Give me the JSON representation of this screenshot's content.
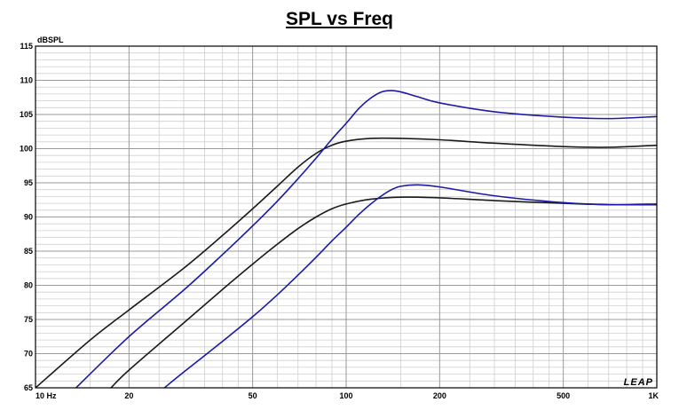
{
  "chart_data": {
    "type": "line",
    "title": "SPL vs Freq",
    "ylabel": "dBSPL",
    "xlabel": "",
    "xscale": "log",
    "xlim": [
      10,
      1000
    ],
    "ylim": [
      65,
      115
    ],
    "grid": true,
    "legend": "none",
    "x_ticks": [
      {
        "value": 10,
        "label": "10 Hz"
      },
      {
        "value": 20,
        "label": "20"
      },
      {
        "value": 50,
        "label": "50"
      },
      {
        "value": 100,
        "label": "100"
      },
      {
        "value": 200,
        "label": "200"
      },
      {
        "value": 500,
        "label": "500"
      },
      {
        "value": 1000,
        "label": "1K"
      }
    ],
    "y_ticks": [
      65,
      70,
      75,
      80,
      85,
      90,
      95,
      100,
      105,
      110,
      115
    ],
    "series": [
      {
        "color": "#1a1a1a",
        "x": [
          10,
          15,
          20,
          30,
          40,
          50,
          60,
          70,
          80,
          90,
          100,
          120,
          150,
          200,
          300,
          500,
          700,
          1000
        ],
        "y": [
          65,
          72,
          76.4,
          82.5,
          87.3,
          91.2,
          94.5,
          97.3,
          99.3,
          100.5,
          101.1,
          101.5,
          101.5,
          101.3,
          100.8,
          100.3,
          100.2,
          100.5
        ]
      },
      {
        "color": "#1a1aa6",
        "x": [
          13.5,
          20,
          30,
          40,
          50,
          60,
          70,
          80,
          90,
          100,
          110,
          120,
          130,
          140,
          150,
          170,
          200,
          300,
          500,
          700,
          1000
        ],
        "y": [
          65,
          72.5,
          79.3,
          84.5,
          88.7,
          92.3,
          95.6,
          98.6,
          101.4,
          103.7,
          105.9,
          107.4,
          108.3,
          108.5,
          108.3,
          107.6,
          106.7,
          105.4,
          104.6,
          104.4,
          104.7
        ]
      },
      {
        "color": "#1a1a1a",
        "x": [
          17.5,
          20,
          30,
          40,
          50,
          60,
          70,
          80,
          90,
          100,
          120,
          150,
          200,
          300,
          500,
          700,
          1000
        ],
        "y": [
          65,
          67.6,
          74.5,
          79.4,
          83.1,
          86,
          88.3,
          90,
          91.2,
          91.9,
          92.6,
          92.9,
          92.8,
          92.4,
          92,
          91.8,
          91.8
        ]
      },
      {
        "color": "#1a1aa6",
        "x": [
          26,
          30,
          40,
          50,
          60,
          70,
          80,
          90,
          100,
          110,
          120,
          130,
          140,
          150,
          170,
          200,
          300,
          500,
          700,
          1000
        ],
        "y": [
          65,
          67.3,
          71.8,
          75.4,
          78.6,
          81.5,
          84.1,
          86.5,
          88.5,
          90.4,
          91.9,
          93.1,
          94,
          94.5,
          94.7,
          94.4,
          93.1,
          92.1,
          91.8,
          91.9
        ]
      }
    ]
  },
  "logo": {
    "text": "LEAP"
  }
}
